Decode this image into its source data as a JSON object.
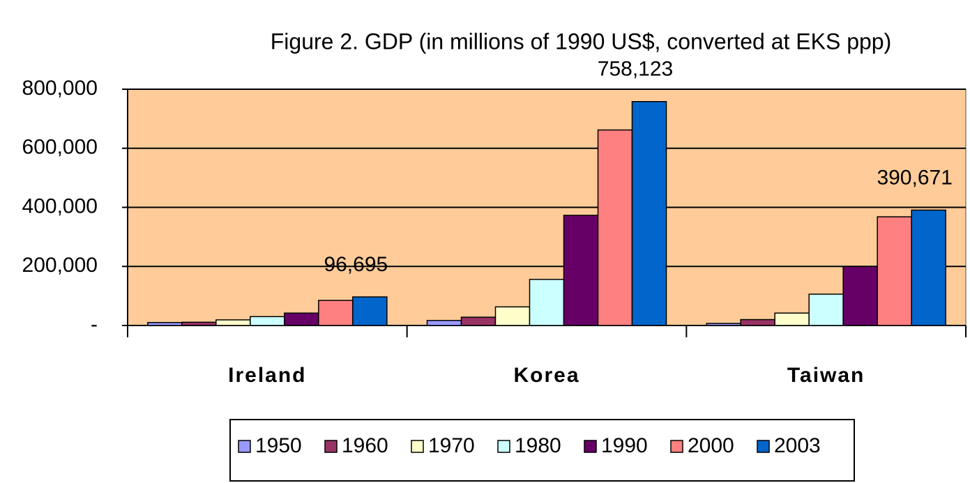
{
  "chart_data": {
    "type": "bar",
    "title": "Figure 2.  GDP (in millions of 1990 US$, converted at EKS ppp)",
    "categories": [
      "Ireland",
      "Korea",
      "Taiwan"
    ],
    "series": [
      {
        "name": "1950",
        "color": "#9999ff",
        "values": [
          10000,
          17000,
          7000
        ]
      },
      {
        "name": "1960",
        "color": "#993366",
        "values": [
          11000,
          28000,
          20000
        ]
      },
      {
        "name": "1970",
        "color": "#ffffcc",
        "values": [
          19000,
          63000,
          42000
        ]
      },
      {
        "name": "1980",
        "color": "#ccffff",
        "values": [
          30000,
          156000,
          106000
        ]
      },
      {
        "name": "1990",
        "color": "#660066",
        "values": [
          42000,
          373000,
          200000
        ]
      },
      {
        "name": "2000",
        "color": "#ff8080",
        "values": [
          85000,
          662000,
          368000
        ]
      },
      {
        "name": "2003",
        "color": "#0066cc",
        "values": [
          96695,
          758123,
          390671
        ],
        "value_labels": [
          "96,695",
          "758,123",
          "390,671"
        ]
      }
    ],
    "ylim": [
      0,
      800000
    ],
    "yticks": [
      {
        "value": 0,
        "label": "-"
      },
      {
        "value": 200000,
        "label": "200,000"
      },
      {
        "value": 400000,
        "label": "400,000"
      },
      {
        "value": 600000,
        "label": "600,000"
      },
      {
        "value": 800000,
        "label": "800,000"
      }
    ],
    "grid": true,
    "plot_background": "#ffcc99",
    "legend": "bottom"
  }
}
